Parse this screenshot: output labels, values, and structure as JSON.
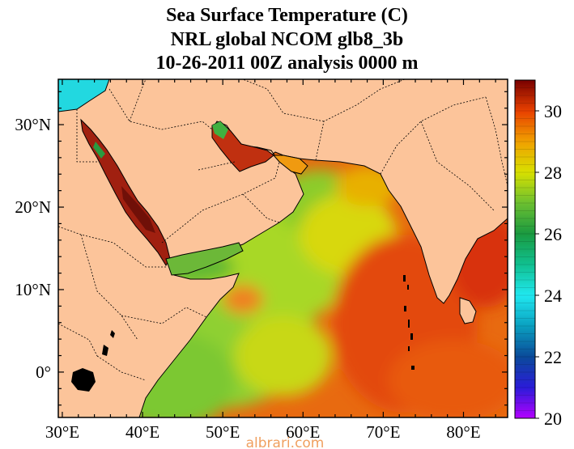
{
  "title": {
    "line1": "Sea Surface Temperature (C)",
    "line2": "NRL global NCOM glb8_3b",
    "line3": "10-26-2011 00Z analysis   0000 m"
  },
  "map": {
    "lon_range": [
      29.5,
      85.5
    ],
    "lat_range": [
      -5.5,
      35.5
    ],
    "x_ticks": [
      {
        "value": 30,
        "label": "30°E"
      },
      {
        "value": 40,
        "label": "40°E"
      },
      {
        "value": 50,
        "label": "50°E"
      },
      {
        "value": 60,
        "label": "60°E"
      },
      {
        "value": 70,
        "label": "70°E"
      },
      {
        "value": 80,
        "label": "80°E"
      }
    ],
    "y_ticks": [
      {
        "value": 30,
        "label": "30°N"
      },
      {
        "value": 20,
        "label": "20°N"
      },
      {
        "value": 10,
        "label": "10°N"
      },
      {
        "value": 0,
        "label": "0°"
      }
    ],
    "land_color": "#fcc49a"
  },
  "colorbar": {
    "min": 20,
    "max": 31,
    "ticks": [
      {
        "value": 20,
        "label": "20"
      },
      {
        "value": 22,
        "label": "22"
      },
      {
        "value": 24,
        "label": "24"
      },
      {
        "value": 26,
        "label": "26"
      },
      {
        "value": 28,
        "label": "28"
      },
      {
        "value": 30,
        "label": "30"
      }
    ],
    "stops": [
      {
        "value": 20,
        "color": "#b400ff"
      },
      {
        "value": 21,
        "color": "#2a1cd8"
      },
      {
        "value": 22,
        "color": "#0a4a9a"
      },
      {
        "value": 23,
        "color": "#0aa0c0"
      },
      {
        "value": 24,
        "color": "#20e8f0"
      },
      {
        "value": 25,
        "color": "#10c090"
      },
      {
        "value": 26,
        "color": "#1a9a40"
      },
      {
        "value": 27,
        "color": "#6cc030"
      },
      {
        "value": 28,
        "color": "#d8e000"
      },
      {
        "value": 29,
        "color": "#f0a000"
      },
      {
        "value": 30,
        "color": "#e84000"
      },
      {
        "value": 31,
        "color": "#780000"
      }
    ]
  },
  "watermark": "albrari.com"
}
